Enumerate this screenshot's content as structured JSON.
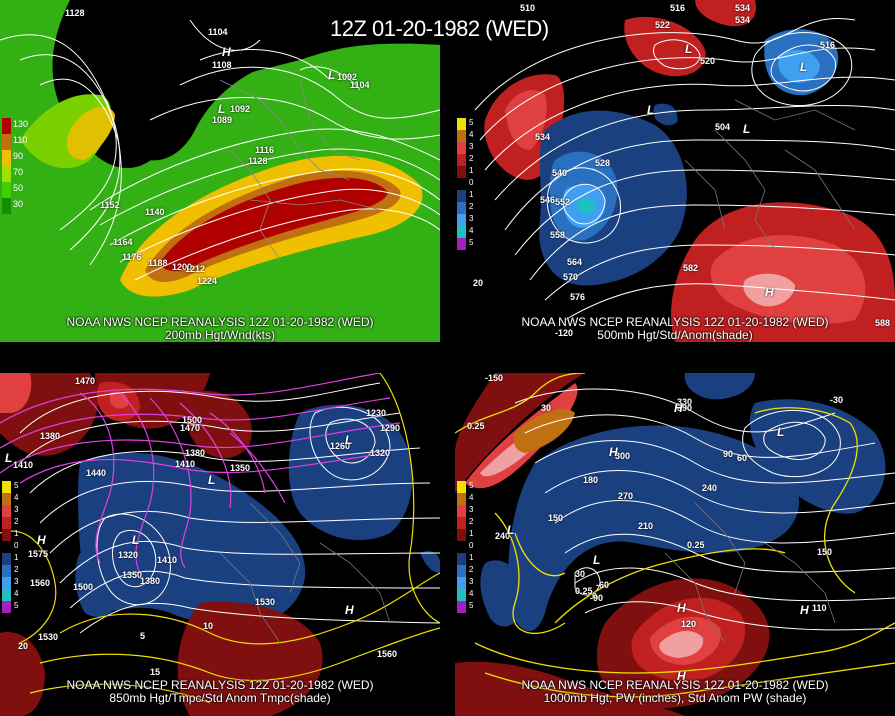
{
  "title": "12Z 01-20-1982 (WED)",
  "panels": [
    {
      "footer_line1": "NOAA NWS NCEP REANALYSIS 12Z 01-20-1982 (WED)",
      "footer_line2": "200mb Hgt/Wnd(kts)",
      "legend": [
        {
          "label": "130",
          "color": "#b00000"
        },
        {
          "label": "110",
          "color": "#c07010"
        },
        {
          "label": "90",
          "color": "#f0c000"
        },
        {
          "label": "70",
          "color": "#a0e000"
        },
        {
          "label": "50",
          "color": "#40d000"
        },
        {
          "label": "30",
          "color": "#109000"
        }
      ],
      "contour_labels": [
        "1128",
        "1104",
        "1108",
        "1092",
        "1104",
        "1092",
        "1089",
        "1116",
        "1128",
        "1152",
        "1140",
        "1164",
        "1176",
        "1188",
        "1200",
        "1212",
        "1224"
      ],
      "centers": [
        "H",
        "L",
        "L"
      ]
    },
    {
      "footer_line1": "NOAA NWS NCEP REANALYSIS 12Z 01-20-1982 (WED)",
      "footer_line2": "500mb Hgt/Std/Anom(shade)",
      "legend": [
        {
          "label": "5",
          "color": "#f0e000"
        },
        {
          "label": "4",
          "color": "#c07010"
        },
        {
          "label": "3",
          "color": "#e04040"
        },
        {
          "label": "2",
          "color": "#c02020"
        },
        {
          "label": "1",
          "color": "#801010"
        },
        {
          "label": "0",
          "color": "#000000"
        },
        {
          "label": "1",
          "color": "#1a4080"
        },
        {
          "label": "2",
          "color": "#2a70c0"
        },
        {
          "label": "3",
          "color": "#40a0f0"
        },
        {
          "label": "4",
          "color": "#20c0c0"
        },
        {
          "label": "5",
          "color": "#a020c0"
        }
      ],
      "contour_labels": [
        "510",
        "516",
        "522",
        "534",
        "534",
        "520",
        "516",
        "534",
        "528",
        "504",
        "540",
        "546",
        "552",
        "558",
        "564",
        "570",
        "576",
        "582",
        "588",
        "20",
        "-120"
      ],
      "centers": [
        "L",
        "L",
        "L",
        "H",
        "L"
      ]
    },
    {
      "footer_line1": "NOAA NWS NCEP REANALYSIS 12Z 01-20-1982 (WED)",
      "footer_line2": "850mb Hgt/Tmpc/Std Anom Tmpc(shade)",
      "legend": [
        {
          "label": "5",
          "color": "#f0e000"
        },
        {
          "label": "4",
          "color": "#c07010"
        },
        {
          "label": "3",
          "color": "#e04040"
        },
        {
          "label": "2",
          "color": "#c02020"
        },
        {
          "label": "1",
          "color": "#801010"
        },
        {
          "label": "0",
          "color": "#000000"
        },
        {
          "label": "1",
          "color": "#1a4080"
        },
        {
          "label": "2",
          "color": "#2a70c0"
        },
        {
          "label": "3",
          "color": "#40a0f0"
        },
        {
          "label": "4",
          "color": "#20c0c0"
        },
        {
          "label": "5",
          "color": "#a020c0"
        }
      ],
      "contour_labels": [
        "1470",
        "1380",
        "1410",
        "1500",
        "1470",
        "1380",
        "1350",
        "1410",
        "1440",
        "1320",
        "1350",
        "1380",
        "1410",
        "1500",
        "1560",
        "1530",
        "1530",
        "1560",
        "1230",
        "1260",
        "1290",
        "1320",
        "1575",
        "5",
        "10",
        "15",
        "20"
      ],
      "centers": [
        "L",
        "L",
        "H",
        "H",
        "L",
        "L"
      ]
    },
    {
      "footer_line1": "NOAA NWS NCEP REANALYSIS 12Z 01-20-1982 (WED)",
      "footer_line2": "1000mb Hgt, PW (inches), Std Anom PW (shade)",
      "legend": [
        {
          "label": "5",
          "color": "#f0e000"
        },
        {
          "label": "4",
          "color": "#c07010"
        },
        {
          "label": "3",
          "color": "#e04040"
        },
        {
          "label": "2",
          "color": "#c02020"
        },
        {
          "label": "1",
          "color": "#801010"
        },
        {
          "label": "0",
          "color": "#000000"
        },
        {
          "label": "1",
          "color": "#1a4080"
        },
        {
          "label": "2",
          "color": "#2a70c0"
        },
        {
          "label": "3",
          "color": "#40a0f0"
        },
        {
          "label": "4",
          "color": "#20c0c0"
        },
        {
          "label": "5",
          "color": "#a020c0"
        }
      ],
      "contour_labels": [
        "-150",
        "30",
        "0.25",
        "330",
        "390",
        "300",
        "180",
        "270",
        "240",
        "210",
        "150",
        "90",
        "60",
        "30",
        "0",
        "-90",
        "-60",
        "-30",
        "0.25",
        "120",
        "110",
        "240",
        "0.25",
        "150"
      ],
      "centers": [
        "H",
        "H",
        "L",
        "L",
        "L",
        "H",
        "H",
        "H"
      ]
    }
  ]
}
